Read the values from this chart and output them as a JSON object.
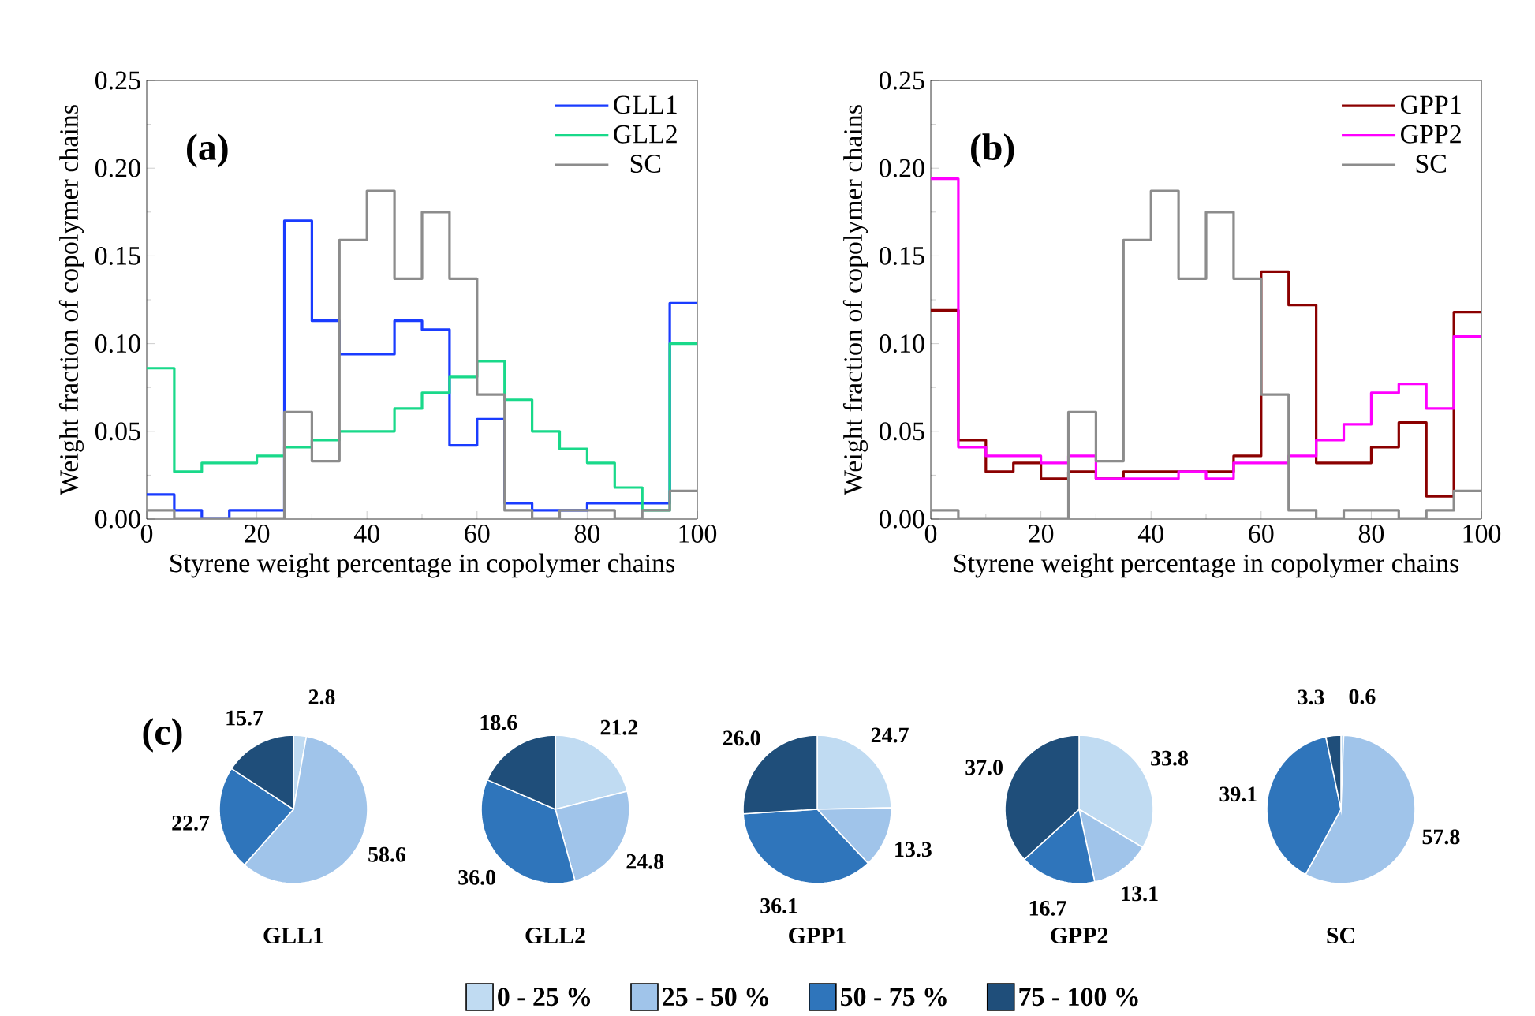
{
  "chart_data": [
    {
      "type": "histogram",
      "xlabel": "Styrene weight percentage in copolymer chains",
      "ylabel": "Weight fraction of copolymer chains",
      "annotations": [
        "(a)"
      ],
      "bins": [
        0,
        5,
        10,
        15,
        20,
        25,
        30,
        35,
        40,
        45,
        50,
        55,
        60,
        65,
        70,
        75,
        80,
        85,
        90,
        95,
        100
      ],
      "series": [
        {
          "name": "GLL1",
          "color": "#1a3cff",
          "values": [
            0.014,
            0.005,
            0,
            0.005,
            0.005,
            0.17,
            0.113,
            0.094,
            0.094,
            0.113,
            0.108,
            0.042,
            0.057,
            0.009,
            0.005,
            0.005,
            0.009,
            0.009,
            0.009,
            0.123
          ]
        },
        {
          "name": "GLL2",
          "color": "#19d98a",
          "values": [
            0.086,
            0.027,
            0.032,
            0.032,
            0.036,
            0.041,
            0.045,
            0.05,
            0.05,
            0.063,
            0.072,
            0.081,
            0.09,
            0.068,
            0.05,
            0.04,
            0.032,
            0.018,
            0.005,
            0.1
          ]
        },
        {
          "name": "SC",
          "color": "#8c8c8c",
          "values": [
            0.005,
            0,
            0,
            0,
            0,
            0.061,
            0.033,
            0.159,
            0.187,
            0.137,
            0.175,
            0.137,
            0.071,
            0.005,
            0,
            0.005,
            0.005,
            0,
            0.005,
            0.016
          ]
        }
      ],
      "xlim": [
        0,
        100
      ],
      "ylim": [
        0,
        0.25
      ],
      "xticks": [
        0,
        20,
        40,
        60,
        80,
        100
      ],
      "yticks": [
        {
          "value": 0,
          "label": "0.00"
        },
        {
          "value": 0.05,
          "label": "0.05"
        },
        {
          "value": 0.1,
          "label": "0.10"
        },
        {
          "value": 0.15,
          "label": "0.15"
        },
        {
          "value": 0.2,
          "label": "0.20"
        },
        {
          "value": 0.25,
          "label": "0.25"
        }
      ],
      "legend": "top right"
    },
    {
      "type": "histogram",
      "xlabel": "Styrene weight percentage in copolymer chains",
      "ylabel": "Weight fraction of copolymer chains",
      "annotations": [
        "(b)"
      ],
      "bins": [
        0,
        5,
        10,
        15,
        20,
        25,
        30,
        35,
        40,
        45,
        50,
        55,
        60,
        65,
        70,
        75,
        80,
        85,
        90,
        95,
        100
      ],
      "series": [
        {
          "name": "GPP1",
          "color": "#8b0000",
          "values": [
            0.119,
            0.045,
            0.027,
            0.032,
            0.023,
            0.027,
            0.023,
            0.027,
            0.027,
            0.027,
            0.027,
            0.036,
            0.141,
            0.122,
            0.032,
            0.032,
            0.041,
            0.055,
            0.013,
            0.118
          ]
        },
        {
          "name": "GPP2",
          "color": "#ff00ff",
          "values": [
            0.194,
            0.041,
            0.036,
            0.036,
            0.032,
            0.036,
            0.023,
            0.023,
            0.023,
            0.027,
            0.023,
            0.032,
            0.032,
            0.036,
            0.045,
            0.054,
            0.072,
            0.077,
            0.063,
            0.104
          ]
        },
        {
          "name": "SC",
          "color": "#8c8c8c",
          "values": [
            0.005,
            0,
            0,
            0,
            0,
            0.061,
            0.033,
            0.159,
            0.187,
            0.137,
            0.175,
            0.137,
            0.071,
            0.005,
            0,
            0.005,
            0.005,
            0,
            0.005,
            0.016
          ]
        }
      ],
      "xlim": [
        0,
        100
      ],
      "ylim": [
        0,
        0.25
      ],
      "xticks": [
        0,
        20,
        40,
        60,
        80,
        100
      ],
      "yticks": [
        {
          "value": 0,
          "label": "0.00"
        },
        {
          "value": 0.05,
          "label": "0.05"
        },
        {
          "value": 0.1,
          "label": "0.10"
        },
        {
          "value": 0.15,
          "label": "0.15"
        },
        {
          "value": 0.2,
          "label": "0.20"
        },
        {
          "value": 0.25,
          "label": "0.25"
        }
      ],
      "legend": "top right"
    },
    {
      "type": "pie",
      "title": "GLL1",
      "annotations": [
        "(c)"
      ],
      "categories": [
        null,
        null,
        null,
        null
      ],
      "values": [
        2.8,
        58.6,
        22.7,
        15.7
      ],
      "colors": [
        "#c0dbf2",
        "#a0c4ea",
        "#2f75bb",
        "#1f4e7a"
      ],
      "value_labels": [
        "2.8",
        "58.6",
        "22.7",
        "15.7"
      ]
    },
    {
      "type": "pie",
      "title": "GLL2",
      "categories": [
        null,
        null,
        null,
        null
      ],
      "values": [
        21.2,
        24.8,
        36.0,
        18.6
      ],
      "colors": [
        "#c0dbf2",
        "#a0c4ea",
        "#2f75bb",
        "#1f4e7a"
      ],
      "value_labels": [
        "21.2",
        "24.8",
        "36.0",
        "18.6"
      ]
    },
    {
      "type": "pie",
      "title": "GPP1",
      "categories": [
        null,
        null,
        null,
        null
      ],
      "values": [
        24.7,
        13.3,
        36.1,
        26.0
      ],
      "colors": [
        "#c0dbf2",
        "#a0c4ea",
        "#2f75bb",
        "#1f4e7a"
      ],
      "value_labels": [
        "24.7",
        "13.3",
        "36.1",
        "26.0"
      ]
    },
    {
      "type": "pie",
      "title": "GPP2",
      "categories": [
        null,
        null,
        null,
        null
      ],
      "values": [
        33.8,
        13.1,
        16.7,
        37.0
      ],
      "colors": [
        "#c0dbf2",
        "#a0c4ea",
        "#2f75bb",
        "#1f4e7a"
      ],
      "value_labels": [
        "33.8",
        "13.1",
        "16.7",
        "37.0"
      ]
    },
    {
      "type": "pie",
      "title": "SC",
      "categories": [
        "0 - 25 %",
        "25 - 50 %",
        "50 - 75 %",
        "75 - 100 %"
      ],
      "values": [
        0.6,
        57.8,
        39.1,
        3.3
      ],
      "colors": [
        "#c0dbf2",
        "#a0c4ea",
        "#2f75bb",
        "#1f4e7a"
      ],
      "value_labels": [
        "0.6",
        "57.8",
        "39.1",
        "3.3"
      ],
      "legend": "bottom"
    }
  ]
}
